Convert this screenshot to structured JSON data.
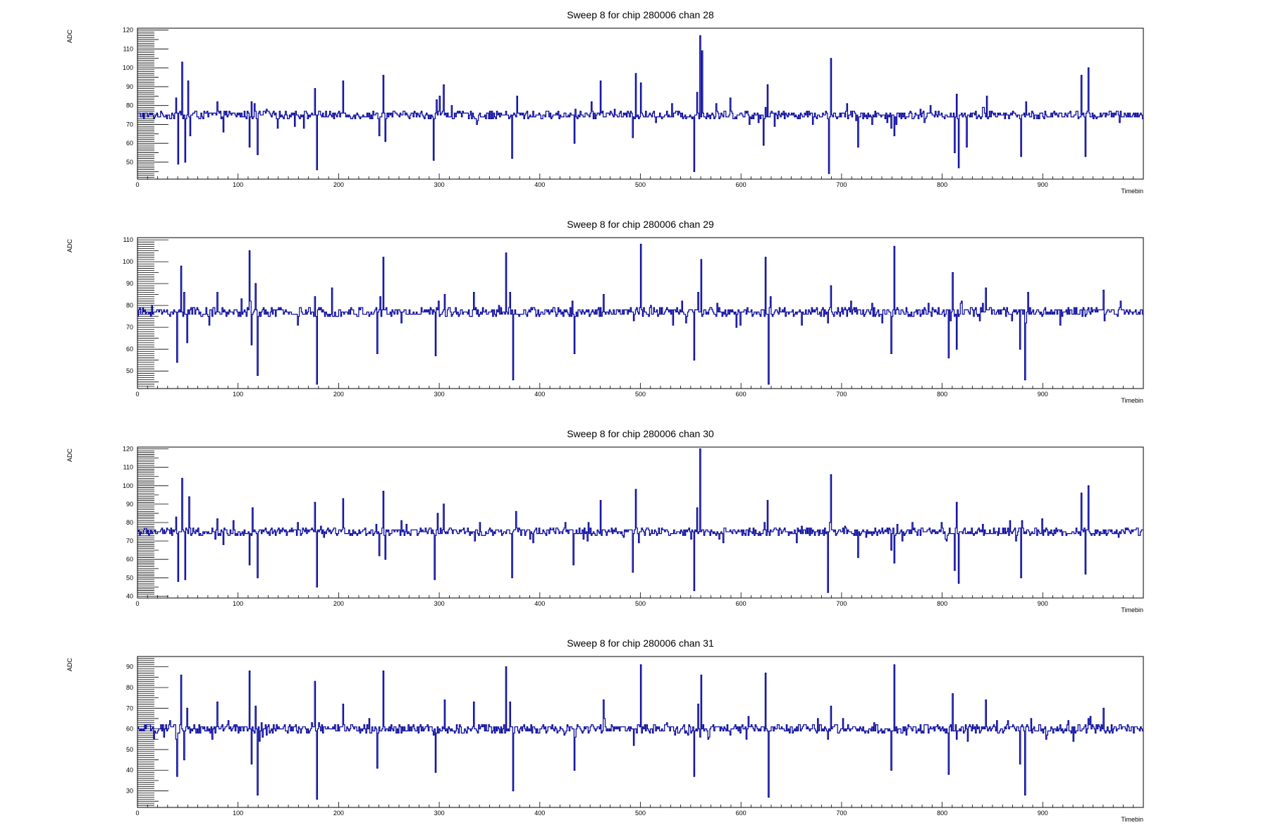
{
  "chart_data": [
    {
      "type": "line",
      "title": "Sweep 8 for chip 280006 chan 28",
      "xlabel": "Timebin",
      "ylabel": "ADC",
      "xlim": [
        0,
        1000
      ],
      "ylim": [
        41,
        121
      ],
      "xticks": [
        0,
        100,
        200,
        300,
        400,
        500,
        600,
        700,
        800,
        900
      ],
      "yticks": [
        50,
        60,
        70,
        80,
        90,
        100,
        110,
        120
      ],
      "baseline": 75,
      "noise": 1.2,
      "color": "#000099",
      "spikes": [
        [
          38,
          84
        ],
        [
          40,
          49
        ],
        [
          44,
          103
        ],
        [
          47,
          50
        ],
        [
          50,
          93
        ],
        [
          52,
          64
        ],
        [
          79,
          82
        ],
        [
          85,
          66
        ],
        [
          111,
          58
        ],
        [
          113,
          82
        ],
        [
          119,
          54
        ],
        [
          176,
          89
        ],
        [
          178,
          46
        ],
        [
          204,
          93
        ],
        [
          240,
          64
        ],
        [
          244,
          96
        ],
        [
          246,
          61
        ],
        [
          294,
          51
        ],
        [
          297,
          83
        ],
        [
          300,
          85
        ],
        [
          304,
          91
        ],
        [
          372,
          52
        ],
        [
          377,
          85
        ],
        [
          434,
          60
        ],
        [
          460,
          93
        ],
        [
          492,
          63
        ],
        [
          495,
          97
        ],
        [
          500,
          92
        ],
        [
          553,
          45
        ],
        [
          556,
          87
        ],
        [
          559,
          117
        ],
        [
          561,
          109
        ],
        [
          589,
          84
        ],
        [
          622,
          59
        ],
        [
          626,
          91
        ],
        [
          687,
          44
        ],
        [
          689,
          105
        ],
        [
          716,
          58
        ],
        [
          749,
          68
        ],
        [
          752,
          64
        ],
        [
          812,
          55
        ],
        [
          814,
          86
        ],
        [
          816,
          47
        ],
        [
          824,
          58
        ],
        [
          840,
          79
        ],
        [
          844,
          85
        ],
        [
          878,
          53
        ],
        [
          883,
          82
        ],
        [
          938,
          96
        ],
        [
          942,
          53
        ],
        [
          945,
          100
        ]
      ]
    },
    {
      "type": "line",
      "title": "Sweep 8 for chip 280006 chan 29",
      "xlabel": "Timebin",
      "ylabel": "ADC",
      "xlim": [
        0,
        1000
      ],
      "ylim": [
        42,
        111
      ],
      "xticks": [
        0,
        100,
        200,
        300,
        400,
        500,
        600,
        700,
        800,
        900
      ],
      "yticks": [
        50,
        60,
        70,
        80,
        90,
        100,
        110
      ],
      "baseline": 77,
      "noise": 1.2,
      "color": "#000099",
      "spikes": [
        [
          39,
          54
        ],
        [
          43,
          98
        ],
        [
          46,
          86
        ],
        [
          49,
          63
        ],
        [
          79,
          86
        ],
        [
          111,
          105
        ],
        [
          113,
          62
        ],
        [
          117,
          90
        ],
        [
          119,
          48
        ],
        [
          176,
          84
        ],
        [
          178,
          44
        ],
        [
          193,
          88
        ],
        [
          238,
          58
        ],
        [
          241,
          84
        ],
        [
          244,
          102
        ],
        [
          296,
          57
        ],
        [
          299,
          82
        ],
        [
          305,
          85
        ],
        [
          334,
          86
        ],
        [
          366,
          104
        ],
        [
          370,
          86
        ],
        [
          373,
          46
        ],
        [
          434,
          58
        ],
        [
          463,
          85
        ],
        [
          493,
          73
        ],
        [
          500,
          108
        ],
        [
          553,
          55
        ],
        [
          557,
          86
        ],
        [
          560,
          101
        ],
        [
          595,
          70
        ],
        [
          624,
          102
        ],
        [
          627,
          44
        ],
        [
          629,
          84
        ],
        [
          686,
          72
        ],
        [
          689,
          89
        ],
        [
          749,
          58
        ],
        [
          752,
          107
        ],
        [
          806,
          56
        ],
        [
          810,
          95
        ],
        [
          814,
          60
        ],
        [
          843,
          88
        ],
        [
          877,
          60
        ],
        [
          882,
          46
        ],
        [
          885,
          86
        ],
        [
          960,
          87
        ]
      ]
    },
    {
      "type": "line",
      "title": "Sweep 8 for chip 280006 chan 30",
      "xlabel": "Timebin",
      "ylabel": "ADC",
      "xlim": [
        0,
        1000
      ],
      "ylim": [
        39,
        121
      ],
      "xticks": [
        0,
        100,
        200,
        300,
        400,
        500,
        600,
        700,
        800,
        900
      ],
      "yticks": [
        40,
        50,
        60,
        70,
        80,
        90,
        100,
        110,
        120
      ],
      "baseline": 75,
      "noise": 1.2,
      "color": "#000099",
      "spikes": [
        [
          38,
          83
        ],
        [
          40,
          48
        ],
        [
          44,
          104
        ],
        [
          47,
          49
        ],
        [
          51,
          94
        ],
        [
          79,
          82
        ],
        [
          85,
          68
        ],
        [
          111,
          57
        ],
        [
          114,
          88
        ],
        [
          119,
          50
        ],
        [
          176,
          91
        ],
        [
          178,
          45
        ],
        [
          204,
          93
        ],
        [
          240,
          62
        ],
        [
          244,
          97
        ],
        [
          246,
          60
        ],
        [
          295,
          49
        ],
        [
          298,
          85
        ],
        [
          304,
          90
        ],
        [
          372,
          50
        ],
        [
          376,
          86
        ],
        [
          433,
          57
        ],
        [
          460,
          92
        ],
        [
          492,
          53
        ],
        [
          495,
          98
        ],
        [
          553,
          43
        ],
        [
          556,
          88
        ],
        [
          559,
          120
        ],
        [
          626,
          92
        ],
        [
          686,
          42
        ],
        [
          689,
          106
        ],
        [
          716,
          61
        ],
        [
          749,
          65
        ],
        [
          752,
          58
        ],
        [
          812,
          54
        ],
        [
          814,
          91
        ],
        [
          816,
          47
        ],
        [
          840,
          79
        ],
        [
          878,
          50
        ],
        [
          938,
          96
        ],
        [
          942,
          52
        ],
        [
          945,
          100
        ]
      ]
    },
    {
      "type": "line",
      "title": "Sweep 8 for chip 280006 chan 31",
      "xlabel": "Timebin",
      "ylabel": "ADC",
      "xlim": [
        0,
        1000
      ],
      "ylim": [
        22,
        95
      ],
      "xticks": [
        0,
        100,
        200,
        300,
        400,
        500,
        600,
        700,
        800,
        900
      ],
      "yticks": [
        30,
        40,
        50,
        60,
        70,
        80,
        90
      ],
      "baseline": 60,
      "noise": 1.2,
      "color": "#000099",
      "spikes": [
        [
          39,
          37
        ],
        [
          43,
          86
        ],
        [
          46,
          45
        ],
        [
          49,
          70
        ],
        [
          79,
          73
        ],
        [
          111,
          88
        ],
        [
          113,
          43
        ],
        [
          117,
          71
        ],
        [
          119,
          28
        ],
        [
          176,
          83
        ],
        [
          178,
          26
        ],
        [
          204,
          72
        ],
        [
          238,
          41
        ],
        [
          244,
          88
        ],
        [
          296,
          39
        ],
        [
          305,
          74
        ],
        [
          334,
          73
        ],
        [
          366,
          90
        ],
        [
          370,
          73
        ],
        [
          373,
          30
        ],
        [
          434,
          40
        ],
        [
          463,
          74
        ],
        [
          493,
          52
        ],
        [
          500,
          91
        ],
        [
          553,
          37
        ],
        [
          557,
          72
        ],
        [
          560,
          86
        ],
        [
          624,
          87
        ],
        [
          627,
          27
        ],
        [
          686,
          55
        ],
        [
          689,
          71
        ],
        [
          749,
          40
        ],
        [
          752,
          91
        ],
        [
          806,
          38
        ],
        [
          810,
          77
        ],
        [
          814,
          55
        ],
        [
          843,
          74
        ],
        [
          877,
          43
        ],
        [
          882,
          28
        ],
        [
          960,
          70
        ]
      ]
    }
  ]
}
